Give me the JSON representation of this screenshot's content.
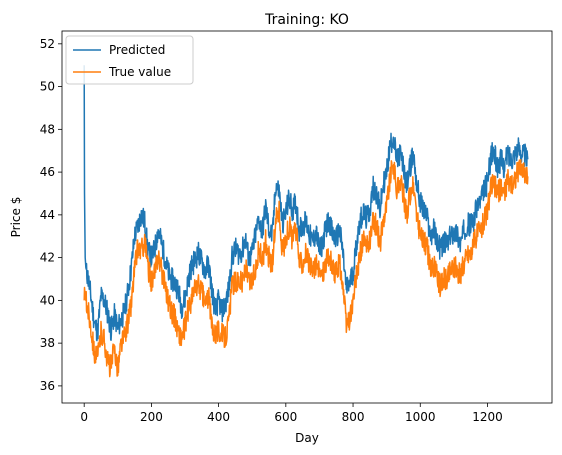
{
  "chart_data": {
    "type": "line",
    "title": "Training: KO",
    "xlabel": "Day",
    "ylabel": "Price $",
    "xlim": [
      -66,
      1392
    ],
    "ylim": [
      35.2,
      52.6
    ],
    "xticks": [
      0,
      200,
      400,
      600,
      800,
      1000,
      1200
    ],
    "yticks": [
      36,
      38,
      40,
      42,
      44,
      46,
      48,
      50,
      52
    ],
    "grid": false,
    "legend_position": "upper-left",
    "colors": {
      "Predicted": "#1f77b4",
      "True value": "#ff7f0e"
    },
    "series": [
      {
        "name": "Predicted",
        "x": [
          0,
          1,
          3,
          6,
          10,
          20,
          30,
          40,
          50,
          60,
          70,
          80,
          90,
          100,
          110,
          120,
          130,
          140,
          150,
          160,
          170,
          180,
          190,
          200,
          210,
          220,
          230,
          240,
          250,
          260,
          270,
          280,
          290,
          300,
          310,
          320,
          330,
          340,
          350,
          360,
          370,
          380,
          390,
          400,
          410,
          420,
          430,
          440,
          450,
          460,
          470,
          480,
          490,
          500,
          510,
          520,
          530,
          540,
          550,
          560,
          570,
          580,
          590,
          600,
          610,
          620,
          630,
          640,
          650,
          660,
          670,
          680,
          690,
          700,
          710,
          720,
          730,
          740,
          750,
          760,
          770,
          780,
          790,
          800,
          810,
          820,
          830,
          840,
          850,
          860,
          870,
          880,
          890,
          900,
          910,
          920,
          930,
          940,
          950,
          960,
          970,
          980,
          990,
          1000,
          1010,
          1020,
          1030,
          1040,
          1050,
          1060,
          1070,
          1080,
          1090,
          1100,
          1110,
          1120,
          1130,
          1140,
          1150,
          1160,
          1170,
          1180,
          1190,
          1200,
          1210,
          1220,
          1230,
          1240,
          1250,
          1260,
          1270,
          1280,
          1290,
          1300,
          1310,
          1320
        ],
        "y": [
          51.0,
          45.0,
          42.0,
          41.3,
          41.2,
          40.2,
          39.0,
          38.5,
          40.2,
          40.0,
          39.4,
          38.6,
          39.3,
          38.7,
          39.1,
          39.5,
          40.4,
          41.5,
          43.0,
          43.5,
          44.0,
          43.7,
          42.3,
          42.0,
          42.4,
          43.3,
          42.7,
          42.0,
          41.3,
          41.0,
          40.8,
          40.5,
          39.7,
          40.1,
          41.0,
          41.6,
          41.9,
          42.2,
          41.8,
          41.4,
          41.7,
          40.5,
          39.5,
          40.0,
          39.5,
          39.8,
          40.5,
          42.0,
          42.4,
          42.2,
          42.3,
          42.9,
          41.9,
          42.2,
          43.1,
          43.8,
          43.2,
          44.4,
          43.3,
          43.0,
          45.4,
          45.1,
          43.6,
          44.1,
          44.8,
          44.2,
          44.6,
          43.3,
          43.5,
          43.7,
          43.1,
          42.7,
          43.2,
          42.3,
          42.7,
          43.5,
          43.7,
          43.0,
          42.9,
          43.3,
          42.2,
          40.5,
          40.8,
          41.3,
          42.6,
          43.7,
          44.1,
          43.8,
          44.2,
          45.3,
          45.0,
          44.2,
          45.4,
          46.0,
          47.2,
          47.7,
          46.5,
          46.9,
          46.2,
          45.4,
          46.3,
          46.8,
          45.4,
          44.6,
          44.2,
          43.9,
          43.0,
          43.3,
          42.8,
          42.4,
          42.7,
          42.6,
          43.0,
          43.2,
          43.1,
          42.6,
          43.3,
          43.6,
          43.5,
          43.8,
          44.5,
          44.6,
          45.2,
          45.5,
          46.8,
          46.9,
          46.2,
          46.6,
          46.2,
          46.9,
          46.6,
          46.9,
          47.1,
          47.0,
          46.8,
          46.6
        ]
      },
      {
        "name": "True value",
        "x": [
          0,
          1,
          3,
          6,
          10,
          20,
          30,
          40,
          50,
          60,
          70,
          80,
          90,
          100,
          110,
          120,
          130,
          140,
          150,
          160,
          170,
          180,
          190,
          200,
          210,
          220,
          230,
          240,
          250,
          260,
          270,
          280,
          290,
          300,
          310,
          320,
          330,
          340,
          350,
          360,
          370,
          380,
          390,
          400,
          410,
          420,
          430,
          440,
          450,
          460,
          470,
          480,
          490,
          500,
          510,
          520,
          530,
          540,
          550,
          560,
          570,
          580,
          590,
          600,
          610,
          620,
          630,
          640,
          650,
          660,
          670,
          680,
          690,
          700,
          710,
          720,
          730,
          740,
          750,
          760,
          770,
          780,
          790,
          800,
          810,
          820,
          830,
          840,
          850,
          860,
          870,
          880,
          890,
          900,
          910,
          920,
          930,
          940,
          950,
          960,
          970,
          980,
          990,
          1000,
          1010,
          1020,
          1030,
          1040,
          1050,
          1060,
          1070,
          1080,
          1090,
          1100,
          1110,
          1120,
          1130,
          1140,
          1150,
          1160,
          1170,
          1180,
          1190,
          1200,
          1210,
          1220,
          1230,
          1240,
          1250,
          1260,
          1270,
          1280,
          1290,
          1300,
          1310,
          1320
        ],
        "y": [
          40.0,
          40.6,
          40.2,
          39.9,
          39.7,
          38.8,
          37.6,
          37.3,
          38.5,
          38.2,
          37.1,
          36.9,
          37.8,
          36.8,
          38.0,
          38.3,
          39.0,
          39.8,
          41.5,
          42.5,
          42.3,
          42.8,
          41.5,
          40.9,
          41.2,
          42.2,
          41.4,
          40.9,
          40.0,
          39.5,
          39.2,
          38.5,
          38.2,
          38.8,
          39.6,
          40.0,
          40.6,
          40.7,
          40.4,
          39.8,
          40.2,
          38.8,
          38.5,
          38.6,
          38.4,
          38.3,
          39.0,
          40.7,
          40.9,
          41.0,
          40.8,
          41.5,
          40.8,
          40.9,
          41.5,
          42.4,
          41.8,
          42.8,
          42.0,
          41.6,
          43.9,
          44.1,
          42.3,
          42.9,
          43.5,
          42.8,
          43.3,
          41.8,
          41.8,
          42.3,
          41.6,
          41.4,
          41.7,
          41.2,
          41.3,
          41.9,
          42.0,
          41.4,
          41.3,
          41.8,
          40.6,
          38.8,
          39.1,
          39.9,
          41.1,
          42.1,
          42.8,
          42.4,
          42.8,
          43.7,
          43.5,
          42.6,
          43.8,
          44.5,
          45.7,
          46.4,
          45.1,
          45.6,
          44.9,
          44.0,
          45.0,
          45.3,
          43.9,
          43.1,
          42.8,
          42.5,
          41.5,
          41.6,
          41.2,
          40.6,
          41.1,
          41.0,
          41.5,
          41.6,
          41.4,
          41.2,
          41.8,
          42.2,
          42.2,
          42.7,
          43.2,
          43.3,
          43.8,
          44.2,
          45.3,
          45.4,
          45.0,
          45.3,
          45.0,
          45.6,
          45.5,
          45.6,
          46.0,
          46.2,
          46.0,
          45.8
        ]
      }
    ]
  }
}
